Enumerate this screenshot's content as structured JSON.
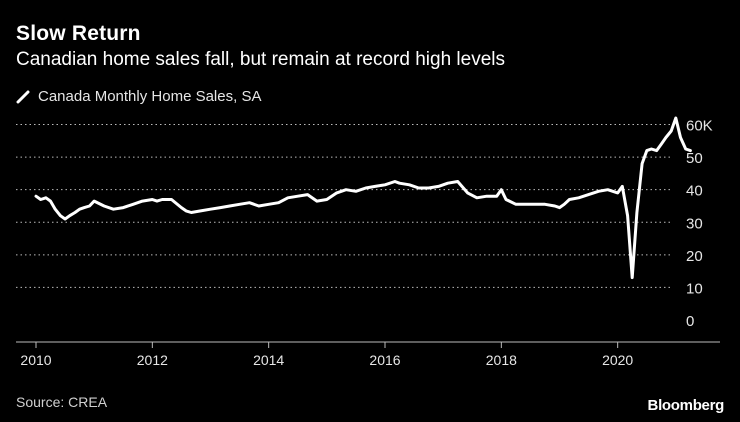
{
  "header": {
    "title": "Slow Return",
    "subtitle": "Canadian home sales fall, but remain at record high levels"
  },
  "legend": {
    "label": "Canada Monthly Home Sales, SA"
  },
  "footer": {
    "source": "Source: CREA",
    "brand": "Bloomberg"
  },
  "colors": {
    "background": "#000000",
    "line": "#ffffff",
    "grid": "#bbbbbb",
    "text": "#e6e6e6"
  },
  "chart_data": {
    "type": "line",
    "title": "Slow Return",
    "subtitle": "Canadian home sales fall, but remain at record high levels",
    "xlabel": "",
    "ylabel": "",
    "x_ticks": [
      "2010",
      "2012",
      "2014",
      "2016",
      "2018",
      "2020"
    ],
    "y_ticks": [
      "0",
      "10",
      "20",
      "30",
      "40",
      "50",
      "60K"
    ],
    "ylim": [
      0,
      62
    ],
    "xlim": [
      2009.75,
      2021.75
    ],
    "grid": true,
    "legend_position": "top-left",
    "series": [
      {
        "name": "Canada Monthly Home Sales, SA",
        "x": [
          2010.0,
          2010.08,
          2010.17,
          2010.25,
          2010.33,
          2010.42,
          2010.5,
          2010.58,
          2010.67,
          2010.75,
          2010.83,
          2010.92,
          2011.0,
          2011.17,
          2011.33,
          2011.5,
          2011.67,
          2011.83,
          2012.0,
          2012.08,
          2012.17,
          2012.33,
          2012.5,
          2012.58,
          2012.67,
          2012.83,
          2013.0,
          2013.17,
          2013.33,
          2013.5,
          2013.67,
          2013.83,
          2014.0,
          2014.17,
          2014.33,
          2014.5,
          2014.67,
          2014.83,
          2015.0,
          2015.17,
          2015.33,
          2015.5,
          2015.67,
          2015.83,
          2016.0,
          2016.17,
          2016.25,
          2016.42,
          2016.58,
          2016.75,
          2016.92,
          2017.08,
          2017.25,
          2017.42,
          2017.58,
          2017.75,
          2017.92,
          2018.0,
          2018.08,
          2018.25,
          2018.42,
          2018.58,
          2018.75,
          2018.92,
          2019.0,
          2019.08,
          2019.17,
          2019.33,
          2019.5,
          2019.67,
          2019.83,
          2020.0,
          2020.08,
          2020.17,
          2020.25,
          2020.33,
          2020.42,
          2020.5,
          2020.58,
          2020.67,
          2020.75,
          2020.83,
          2020.92,
          2021.0,
          2021.08,
          2021.17,
          2021.25
        ],
        "values": [
          38,
          37,
          37.5,
          36.5,
          34,
          32,
          31,
          32,
          33,
          34,
          34.5,
          35,
          36.5,
          35,
          34,
          34.5,
          35.5,
          36.5,
          37,
          36.5,
          37,
          37,
          34.5,
          33.5,
          33,
          33.5,
          34,
          34.5,
          35,
          35.5,
          36,
          35,
          35.5,
          36,
          37.5,
          38,
          38.5,
          36.5,
          37,
          39,
          40,
          39.5,
          40.5,
          41,
          41.5,
          42.5,
          42,
          41.5,
          40.5,
          40.5,
          41,
          42,
          42.5,
          39,
          37.5,
          38,
          38,
          40,
          37,
          35.5,
          35.5,
          35.5,
          35.5,
          35,
          34.5,
          35.5,
          37,
          37.5,
          38.5,
          39.5,
          40,
          39,
          41,
          32,
          13,
          33,
          48,
          52,
          52.5,
          52,
          54,
          56,
          58,
          62,
          56,
          52.5,
          52
        ]
      }
    ]
  }
}
